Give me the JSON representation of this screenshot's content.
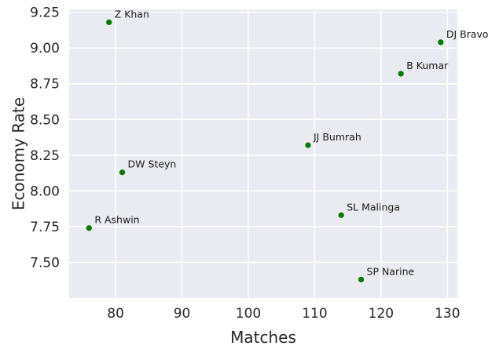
{
  "chart_data": {
    "type": "scatter",
    "title": "",
    "xlabel": "Matches",
    "ylabel": "Economy Rate",
    "xlim": [
      73,
      131.5
    ],
    "ylim": [
      7.25,
      9.27
    ],
    "xticks": [
      80,
      90,
      100,
      110,
      120,
      130
    ],
    "yticks": [
      7.5,
      7.75,
      8.0,
      8.25,
      8.5,
      8.75,
      9.0,
      9.25
    ],
    "xtick_labels": [
      "80",
      "90",
      "100",
      "110",
      "120",
      "130"
    ],
    "ytick_labels": [
      "7.50",
      "7.75",
      "8.00",
      "8.25",
      "8.50",
      "8.75",
      "9.00",
      "9.25"
    ],
    "grid": true,
    "point_color": "#007a00",
    "background_color": "#eaeaf2",
    "points": [
      {
        "label": "Z Khan",
        "x": 79,
        "y": 9.18
      },
      {
        "label": "DJ Bravo",
        "x": 129,
        "y": 9.04
      },
      {
        "label": "B Kumar",
        "x": 123,
        "y": 8.82
      },
      {
        "label": "JJ Bumrah",
        "x": 109,
        "y": 8.32
      },
      {
        "label": "DW Steyn",
        "x": 81,
        "y": 8.13
      },
      {
        "label": "SL Malinga",
        "x": 114,
        "y": 7.83
      },
      {
        "label": "R Ashwin",
        "x": 76,
        "y": 7.74
      },
      {
        "label": "SP Narine",
        "x": 117,
        "y": 7.38
      }
    ]
  }
}
